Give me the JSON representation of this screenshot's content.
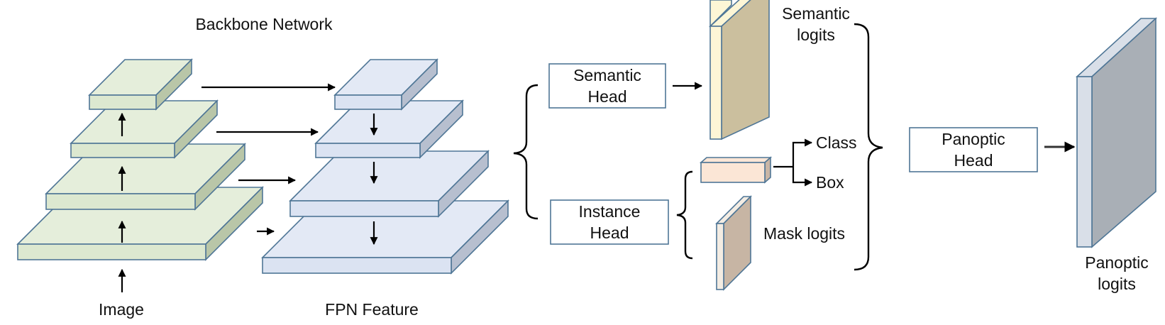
{
  "labels": {
    "backbone": "Backbone Network",
    "image": "Image",
    "fpn": "FPN Feature",
    "semantic_head": [
      "Semantic",
      "Head"
    ],
    "instance_head": [
      "Instance",
      "Head"
    ],
    "semantic_logits": [
      "Semantic",
      "logits"
    ],
    "class": "Class",
    "box": "Box",
    "mask_logits": "Mask logits",
    "panoptic_head": [
      "Panoptic",
      "Head"
    ],
    "panoptic_logits": [
      "Panoptic",
      "logits"
    ]
  },
  "colors": {
    "backbone_top": "#e5eedb",
    "backbone_front": "#dce8d0",
    "backbone_side": "#b9c6a8",
    "fpn_top": "#e3e9f5",
    "fpn_front": "#dbe3f2",
    "fpn_side": "#b7bfcf",
    "edge": "#4f7696",
    "semantic_front": "#fdf6d6",
    "semantic_side": "#cbbf9e",
    "classbox_front": "#fbe6d6",
    "classbox_side": "#c9b6a6",
    "mask_front": "#f3ece3",
    "mask_side": "#c7b5a4",
    "panoptic_front": "#d9dfe8",
    "panoptic_side": "#a9afb6"
  }
}
